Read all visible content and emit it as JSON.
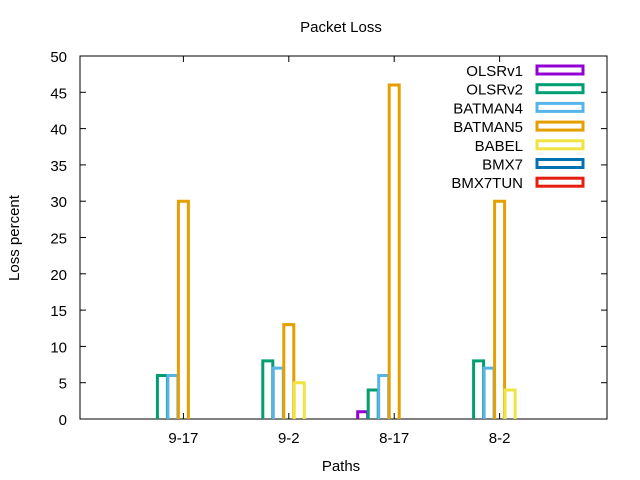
{
  "chart_data": {
    "type": "bar",
    "title": "Packet Loss",
    "xlabel": "Paths",
    "ylabel": "Loss percent",
    "categories": [
      "9-17",
      "9-2",
      "8-17",
      "8-2"
    ],
    "ylim": [
      0,
      50
    ],
    "yticks": [
      0,
      5,
      10,
      15,
      20,
      25,
      30,
      35,
      40,
      45,
      50
    ],
    "grid": false,
    "legend_position": "top-right",
    "series": [
      {
        "name": "OLSRv1",
        "color": "#9400d3",
        "values": [
          0,
          0,
          1,
          0
        ]
      },
      {
        "name": "OLSRv2",
        "color": "#009e73",
        "values": [
          6,
          8,
          4,
          8
        ]
      },
      {
        "name": "BATMAN4",
        "color": "#56b4e9",
        "values": [
          6,
          7,
          6,
          7
        ]
      },
      {
        "name": "BATMAN5",
        "color": "#e69f00",
        "values": [
          30,
          13,
          46,
          30
        ]
      },
      {
        "name": "BABEL",
        "color": "#f0e442",
        "values": [
          0,
          5,
          0,
          4
        ]
      },
      {
        "name": "BMX7",
        "color": "#0072b2",
        "values": [
          0,
          0,
          0,
          0
        ]
      },
      {
        "name": "BMX7TUN",
        "color": "#e51e10",
        "values": [
          0,
          0,
          0,
          0
        ]
      }
    ]
  }
}
